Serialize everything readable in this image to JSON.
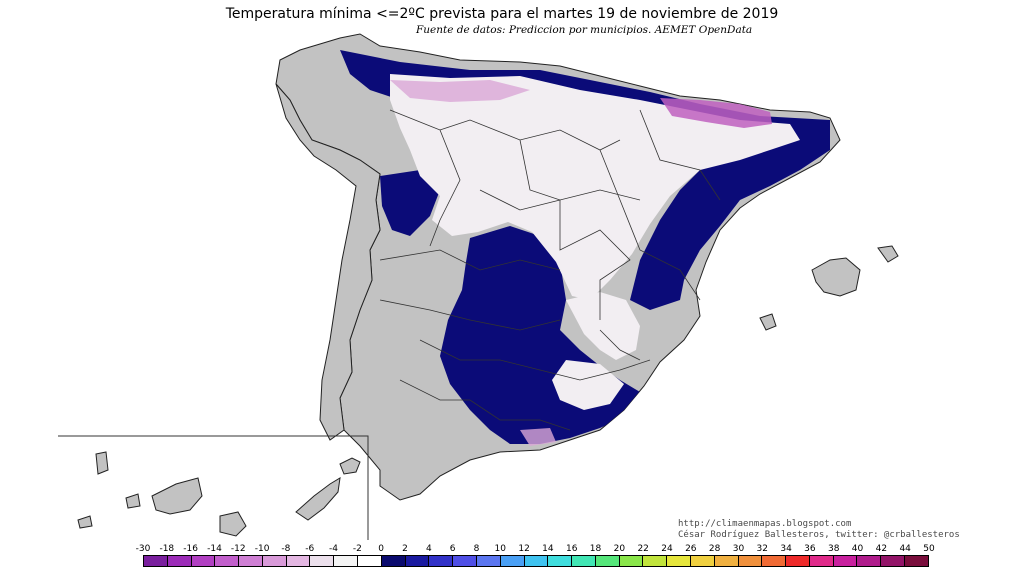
{
  "title": "Temperatura mínima <=2ºC prevista para el martes 19 de noviembre de 2019",
  "subtitle": "Fuente de datos: Prediccion por municipios. AEMET OpenData",
  "credits": {
    "line1": "http://climaenmapas.blogspot.com",
    "line2": "César Rodríguez Ballesteros, twitter: @crballesteros"
  },
  "colors": {
    "land_above_threshold": "#c0c0c0",
    "cold_band_0_2": "#0b0b78",
    "subzero": "#f2eef2",
    "deep_frost": "#b83cb8",
    "outline": "#222222"
  },
  "legend": {
    "labels": [
      "-30",
      "-18",
      "-16",
      "-14",
      "-12",
      "-10",
      "-8",
      "-6",
      "-4",
      "-2",
      "0",
      "2",
      "4",
      "6",
      "8",
      "10",
      "12",
      "14",
      "16",
      "18",
      "20",
      "22",
      "24",
      "26",
      "28",
      "30",
      "32",
      "34",
      "36",
      "38",
      "40",
      "42",
      "44",
      "50"
    ],
    "colors": [
      "#7a1f9e",
      "#9c2bb8",
      "#b13fc2",
      "#c25fcc",
      "#cf7fd4",
      "#d99ad9",
      "#e4b7e2",
      "#ece0ec",
      "#f4f4f4",
      "#ffffff",
      "#0a0a6e",
      "#1a1aa0",
      "#3232c8",
      "#4f4fe6",
      "#5b76f0",
      "#4aa0f5",
      "#3fc3f0",
      "#40dede",
      "#41e6b4",
      "#55e67a",
      "#8ae64a",
      "#c1e43c",
      "#e6e63c",
      "#f0d040",
      "#f0b040",
      "#f0903c",
      "#f06a34",
      "#ee2a2a",
      "#e02a8a",
      "#c8209e",
      "#b01c8c",
      "#931468",
      "#7a0e3c"
    ]
  }
}
